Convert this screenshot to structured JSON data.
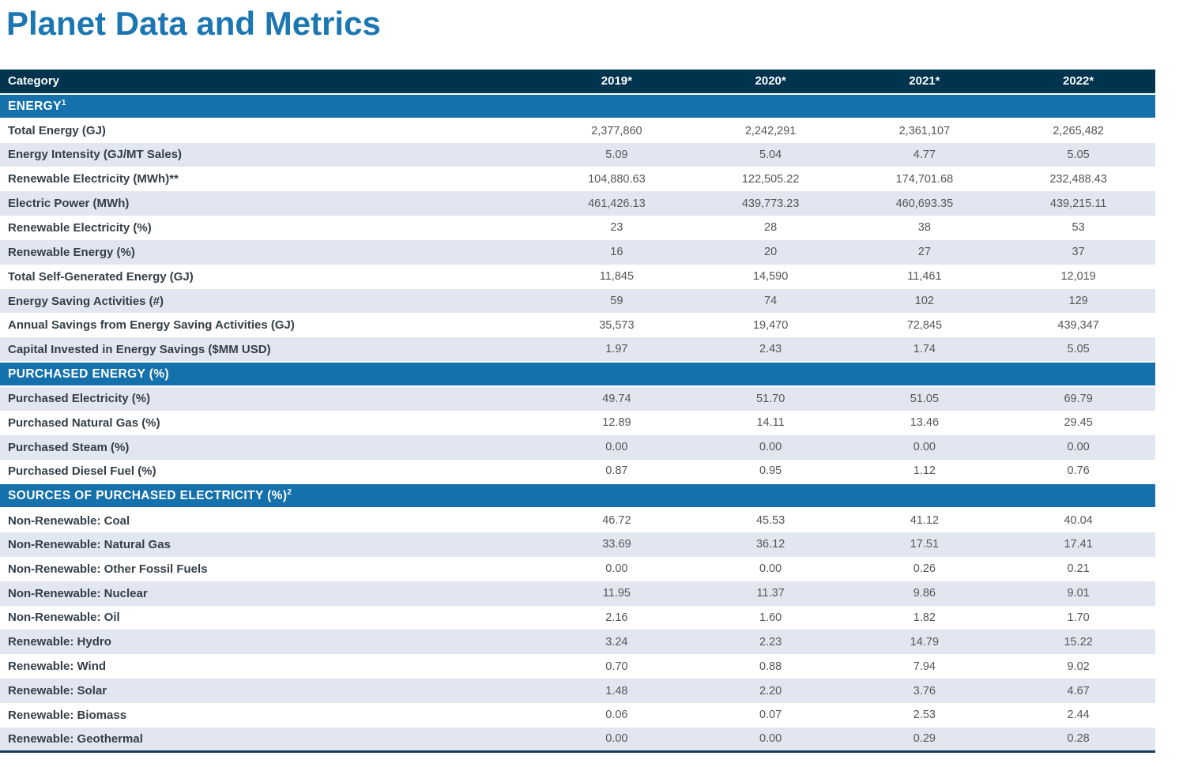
{
  "page_title": "Planet Data and Metrics",
  "colors": {
    "title_blue": "#1b76b2",
    "header_navy": "#00334d",
    "section_blue": "#1571ac",
    "stripe_gray": "#e2e6f0",
    "category_text": "#333f48",
    "value_text": "#54565a",
    "bottom_border": "#1d3c56"
  },
  "table": {
    "columns": [
      "Category",
      "2019*",
      "2020*",
      "2021*",
      "2022*"
    ],
    "sections": [
      {
        "label": "ENERGY",
        "sup": "1",
        "rows": [
          {
            "category": "Total Energy (GJ)",
            "values": [
              "2,377,860",
              "2,242,291",
              "2,361,107",
              "2,265,482"
            ]
          },
          {
            "category": "Energy Intensity (GJ/MT Sales)",
            "values": [
              "5.09",
              "5.04",
              "4.77",
              "5.05"
            ]
          },
          {
            "category": "Renewable Electricity (MWh)**",
            "values": [
              "104,880.63",
              "122,505.22",
              "174,701.68",
              "232,488.43"
            ]
          },
          {
            "category": "Electric Power (MWh)",
            "values": [
              "461,426.13",
              "439,773.23",
              "460,693.35",
              "439,215.11"
            ]
          },
          {
            "category": "Renewable Electricity (%)",
            "values": [
              "23",
              "28",
              "38",
              "53"
            ]
          },
          {
            "category": "Renewable Energy (%)",
            "values": [
              "16",
              "20",
              "27",
              "37"
            ]
          },
          {
            "category": "Total Self-Generated Energy (GJ)",
            "values": [
              "11,845",
              "14,590",
              "11,461",
              "12,019"
            ]
          },
          {
            "category": "Energy Saving Activities (#)",
            "values": [
              "59",
              "74",
              "102",
              "129"
            ]
          },
          {
            "category": "Annual Savings from Energy Saving Activities (GJ)",
            "values": [
              "35,573",
              "19,470",
              "72,845",
              "439,347"
            ]
          },
          {
            "category": "Capital Invested in Energy Savings ($MM USD)",
            "values": [
              "1.97",
              "2.43",
              "1.74",
              "5.05"
            ]
          }
        ]
      },
      {
        "label": "PURCHASED ENERGY (%)",
        "sup": "",
        "rows": [
          {
            "category": "Purchased Electricity (%)",
            "values": [
              "49.74",
              "51.70",
              "51.05",
              "69.79"
            ]
          },
          {
            "category": "Purchased Natural Gas (%)",
            "values": [
              "12.89",
              "14.11",
              "13.46",
              "29.45"
            ]
          },
          {
            "category": "Purchased Steam (%)",
            "values": [
              "0.00",
              "0.00",
              "0.00",
              "0.00"
            ]
          },
          {
            "category": "Purchased Diesel Fuel (%)",
            "values": [
              "0.87",
              "0.95",
              "1.12",
              "0.76"
            ]
          }
        ]
      },
      {
        "label": "SOURCES OF PURCHASED ELECTRICITY (%)",
        "sup": "2",
        "rows": [
          {
            "category": "Non-Renewable: Coal",
            "values": [
              "46.72",
              "45.53",
              "41.12",
              "40.04"
            ]
          },
          {
            "category": "Non-Renewable: Natural Gas",
            "values": [
              "33.69",
              "36.12",
              "17.51",
              "17.41"
            ]
          },
          {
            "category": "Non-Renewable: Other Fossil Fuels",
            "values": [
              "0.00",
              "0.00",
              "0.26",
              "0.21"
            ]
          },
          {
            "category": "Non-Renewable: Nuclear",
            "values": [
              "11.95",
              "11.37",
              "9.86",
              "9.01"
            ]
          },
          {
            "category": "Non-Renewable: Oil",
            "values": [
              "2.16",
              "1.60",
              "1.82",
              "1.70"
            ]
          },
          {
            "category": "Renewable: Hydro",
            "values": [
              "3.24",
              "2.23",
              "14.79",
              "15.22"
            ]
          },
          {
            "category": "Renewable: Wind",
            "values": [
              "0.70",
              "0.88",
              "7.94",
              "9.02"
            ]
          },
          {
            "category": "Renewable: Solar",
            "values": [
              "1.48",
              "2.20",
              "3.76",
              "4.67"
            ]
          },
          {
            "category": "Renewable: Biomass",
            "values": [
              "0.06",
              "0.07",
              "2.53",
              "2.44"
            ]
          },
          {
            "category": "Renewable: Geothermal",
            "values": [
              "0.00",
              "0.00",
              "0.29",
              "0.28"
            ]
          }
        ]
      }
    ]
  }
}
